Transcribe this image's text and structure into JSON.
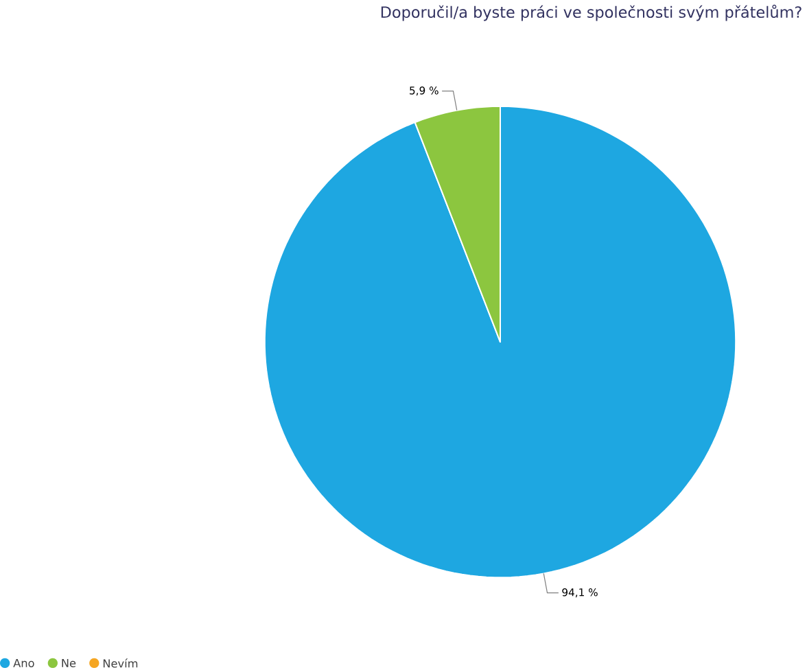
{
  "chart_data": {
    "type": "pie",
    "title": "Doporučil/a byste práci ve společnosti svým přátelům?",
    "categories": [
      "Ano",
      "Ne",
      "Nevím"
    ],
    "values": [
      94.1,
      5.9,
      0
    ],
    "colors": [
      "#1ea7e1",
      "#8cc63f",
      "#f5a623"
    ],
    "value_labels": [
      "94,1 %",
      "5,9 %",
      null
    ],
    "legend": "bottom left"
  }
}
